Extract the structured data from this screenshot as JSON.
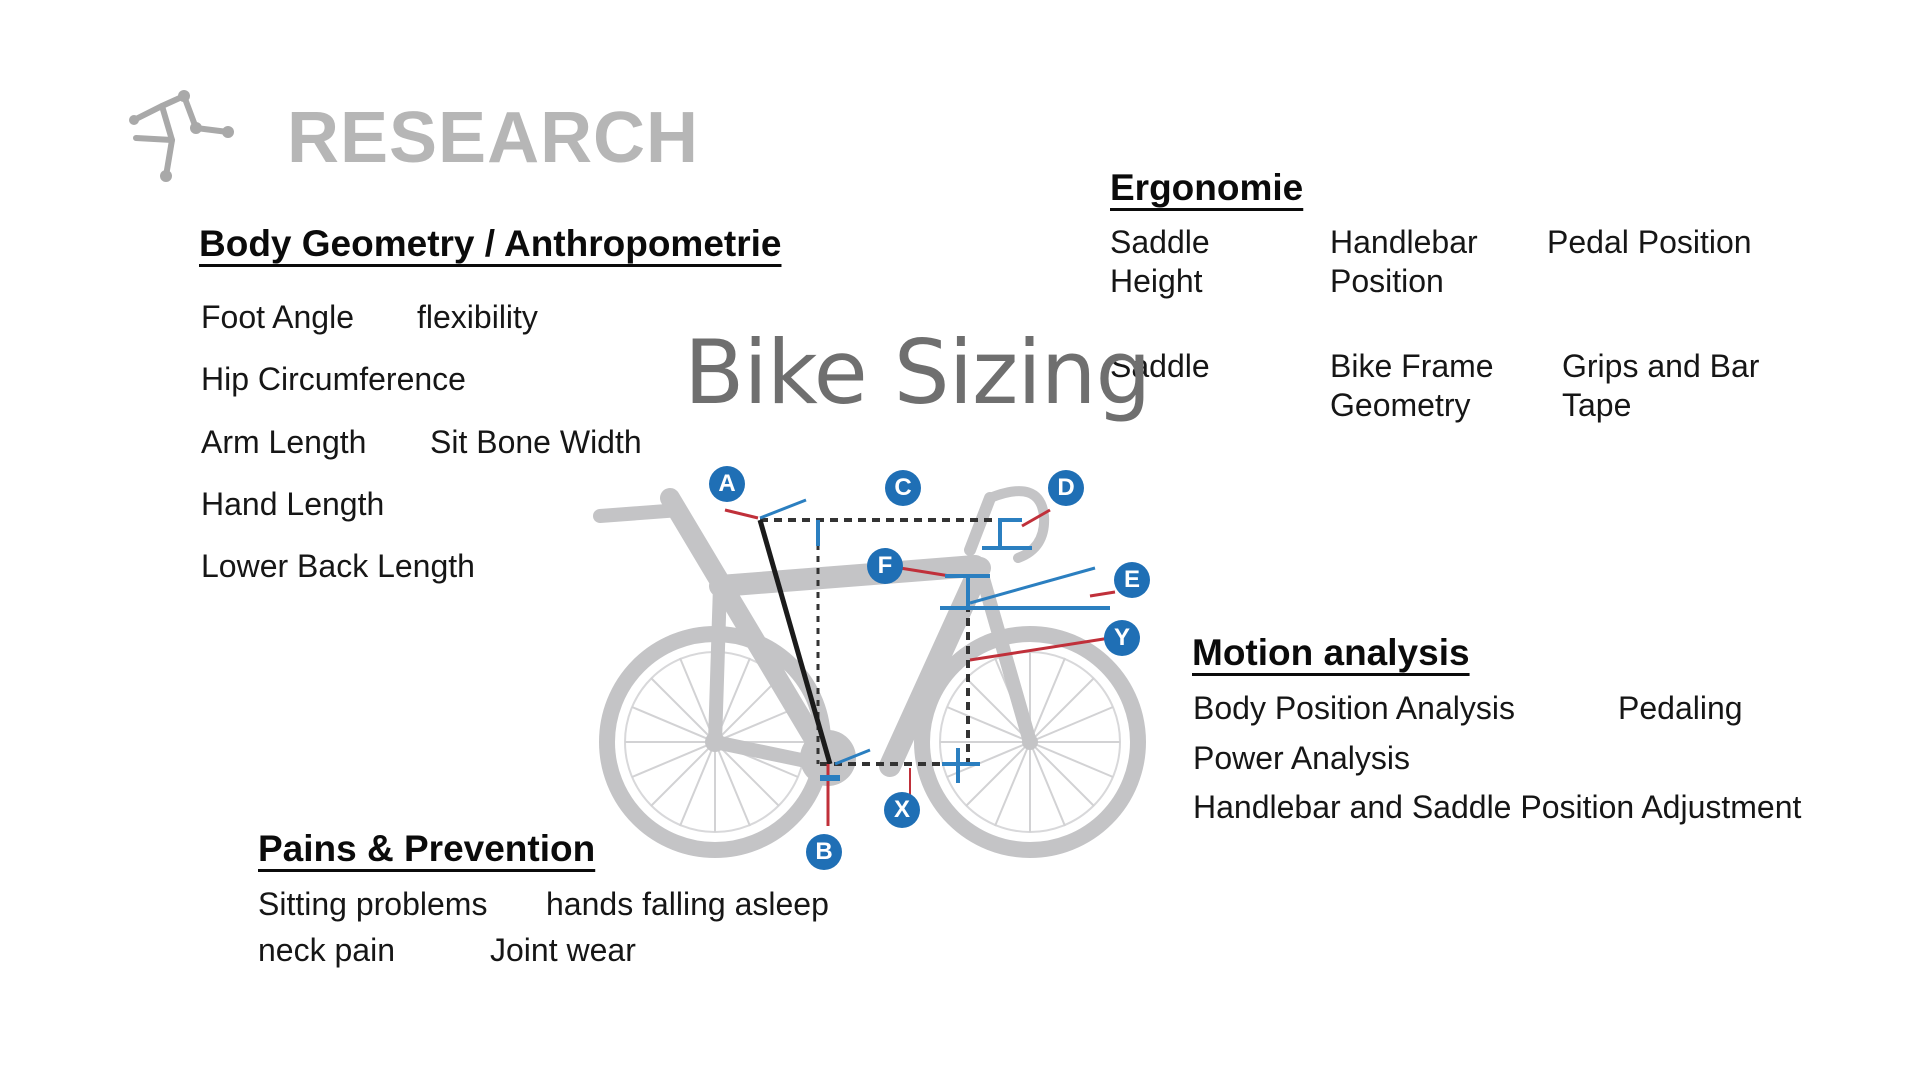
{
  "header": {
    "title": "RESEARCH",
    "logo_icon": "constellation-icon",
    "title_color": "#b6b6b6"
  },
  "body_geometry": {
    "heading": "Body  Geometry / Anthropometrie",
    "items": [
      "Foot Angle",
      "flexibility",
      "Hip Circumference",
      "Arm Length",
      "Sit Bone Width",
      "Hand Length",
      "Lower Back Length"
    ]
  },
  "ergonomie": {
    "heading": "Ergonomie",
    "items": [
      {
        "line1": "Saddle",
        "line2": "Height"
      },
      {
        "line1": "Handlebar",
        "line2": "Position"
      },
      {
        "line1": "Pedal Position",
        "line2": ""
      },
      {
        "line1": "Saddle",
        "line2": ""
      },
      {
        "line1": "Bike Frame",
        "line2": "Geometry"
      },
      {
        "line1": "Grips and Bar",
        "line2": "Tape"
      }
    ]
  },
  "bike_sizing": {
    "title": "Bike Sizing",
    "labels": [
      "A",
      "B",
      "C",
      "D",
      "E",
      "F",
      "X",
      "Y"
    ],
    "colors": {
      "frame": "#c4c4c6",
      "marker": "#1f6fb5",
      "red": "#c0303a",
      "blue_line": "#2b7fc0",
      "dashed": "#333333"
    }
  },
  "motion_analysis": {
    "heading": "Motion analysis",
    "items": [
      "Body Position Analysis",
      "Pedaling",
      "Power Analysis",
      "Handlebar and Saddle Position Adjustment"
    ]
  },
  "pains": {
    "heading": "Pains & Prevention",
    "items": [
      "Sitting problems",
      "hands falling asleep",
      "neck pain",
      "Joint wear"
    ]
  }
}
